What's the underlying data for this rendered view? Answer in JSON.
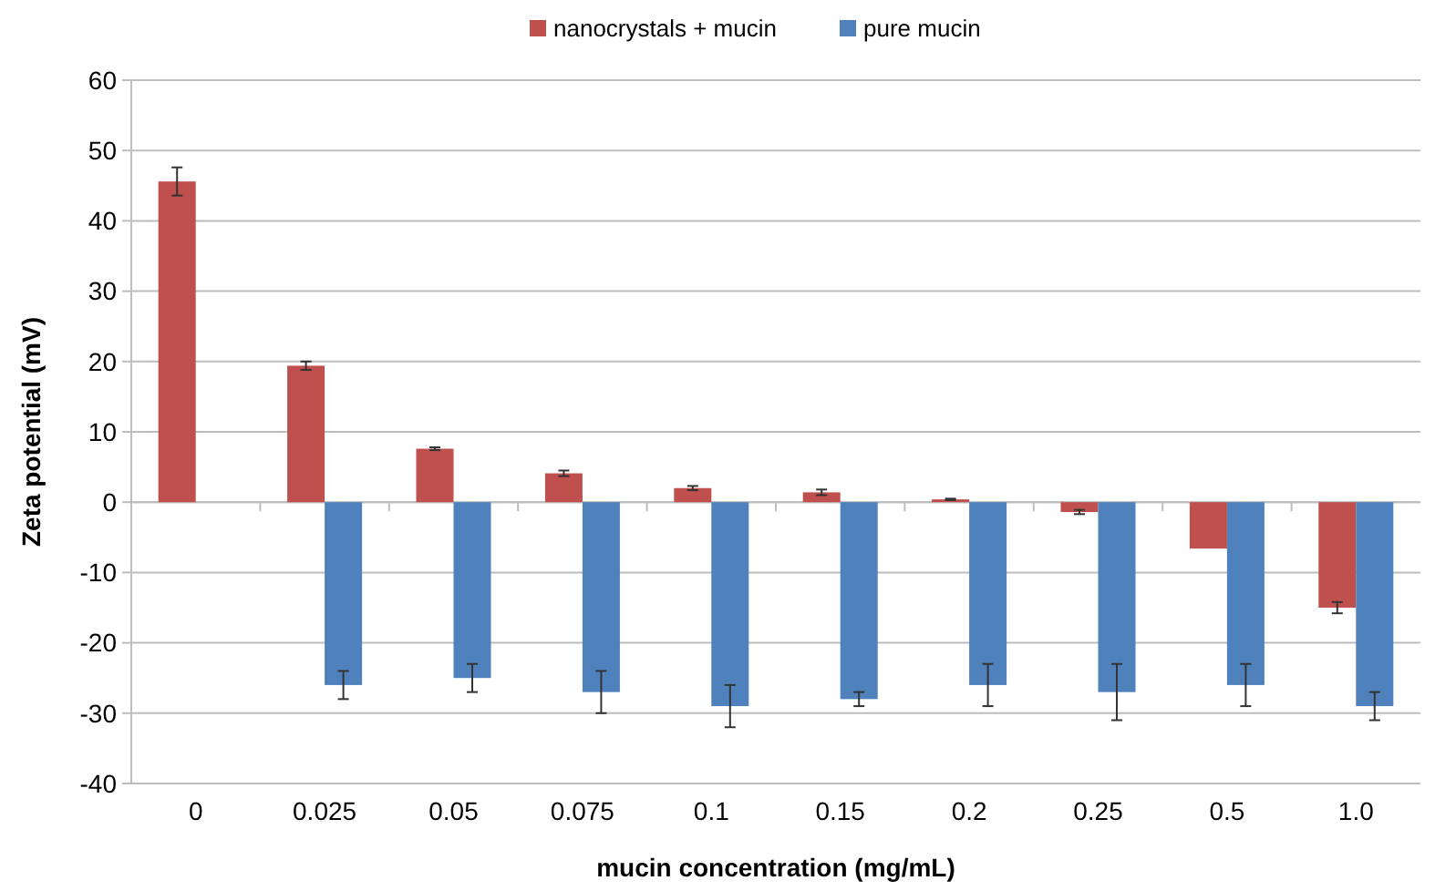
{
  "chart_data": {
    "type": "bar",
    "xlabel": "mucin concentration (mg/mL)",
    "ylabel": "Zeta potential (mV)",
    "categories": [
      "0",
      "0.025",
      "0.05",
      "0.075",
      "0.1",
      "0.15",
      "0.2",
      "0.25",
      "0.5",
      "1.0"
    ],
    "series": [
      {
        "name": "nanocrystals + mucin",
        "color": "#c0504d",
        "values": [
          45.6,
          19.4,
          7.6,
          4.1,
          2.0,
          1.4,
          0.4,
          -1.4,
          -6.6,
          -15.0
        ],
        "errors": [
          2,
          0.6,
          0.2,
          0.4,
          0.3,
          0.4,
          0.1,
          0.3,
          null,
          0.8
        ]
      },
      {
        "name": "pure mucin",
        "color": "#4f81bd",
        "values": [
          null,
          -26,
          -25,
          -27,
          -29,
          -28,
          -26,
          -27,
          -26,
          -29
        ],
        "errors": [
          null,
          2,
          2,
          3,
          3,
          1,
          3,
          4,
          3,
          2
        ]
      }
    ],
    "ylim": [
      -40,
      60
    ],
    "yticks": [
      -40,
      -30,
      -20,
      -10,
      0,
      10,
      20,
      30,
      40,
      50,
      60
    ],
    "grid": "y",
    "legend": "top"
  }
}
